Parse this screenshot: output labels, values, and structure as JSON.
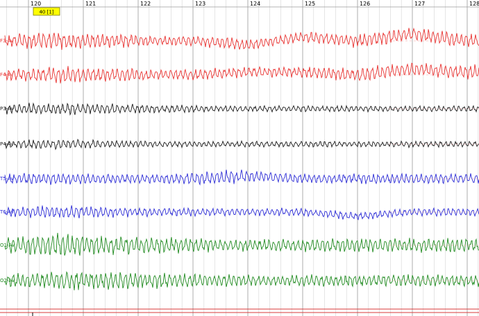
{
  "timeline": {
    "seconds": [
      "120",
      "121",
      "122",
      "123",
      "124",
      "125",
      "126",
      "127",
      "128"
    ]
  },
  "marker": {
    "label": "40 [1]",
    "color": "#ffff00"
  },
  "channels": [
    {
      "name": "F3-Av",
      "label": "F3-Av",
      "color": "#e8312f"
    },
    {
      "name": "F4-Av",
      "label": "F4-Av",
      "color": "#e8312f"
    },
    {
      "name": "P3-Av",
      "label": "P3-Av",
      "color": "#1a1a1a"
    },
    {
      "name": "P4-Av",
      "label": "P4-Av",
      "color": "#1a1a1a"
    },
    {
      "name": "T5-Av",
      "label": "T5-Av",
      "color": "#2b2bd6"
    },
    {
      "name": "T6-Av",
      "label": "T6-Av",
      "color": "#2b2bd6"
    },
    {
      "name": "O1-Av",
      "label": "O1-Av",
      "color": "#1f8a1f"
    },
    {
      "name": "O2-Av",
      "label": "O2-Av",
      "color": "#1f8a1f"
    }
  ],
  "colors": {
    "grid_major": "#9a9a9a",
    "grid_minor": "#d4d4d4",
    "baseline": "#f3a0a0",
    "bottom_rule": "#d83a3a"
  }
}
